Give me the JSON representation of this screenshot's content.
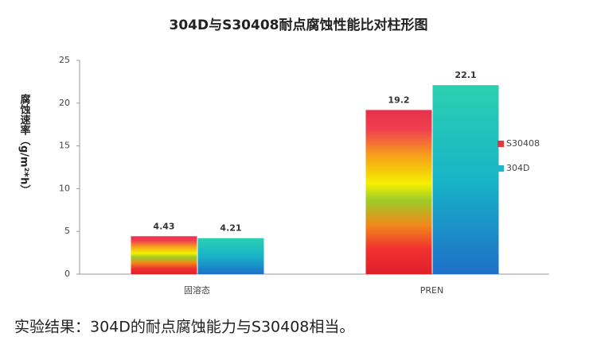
{
  "chart_data": {
    "type": "bar",
    "title": "304D与S30408耐点腐蚀性能比对柱形图",
    "y_label": "腐蚀速率（g/m²*h）",
    "categories": [
      "固溶态",
      "PREN"
    ],
    "series": [
      {
        "name": "S30408",
        "color": "#e8343c",
        "values": [
          4.43,
          19.2
        ]
      },
      {
        "name": "304D",
        "color": "#1fb5c4",
        "values": [
          4.21,
          22.1
        ]
      }
    ],
    "ylim": [
      0,
      25
    ],
    "yticks": [
      0,
      5,
      10,
      15,
      20,
      25
    ],
    "legend": "right",
    "caption": "实验结果：304D的耐点腐蚀能力与S30408相当。"
  }
}
